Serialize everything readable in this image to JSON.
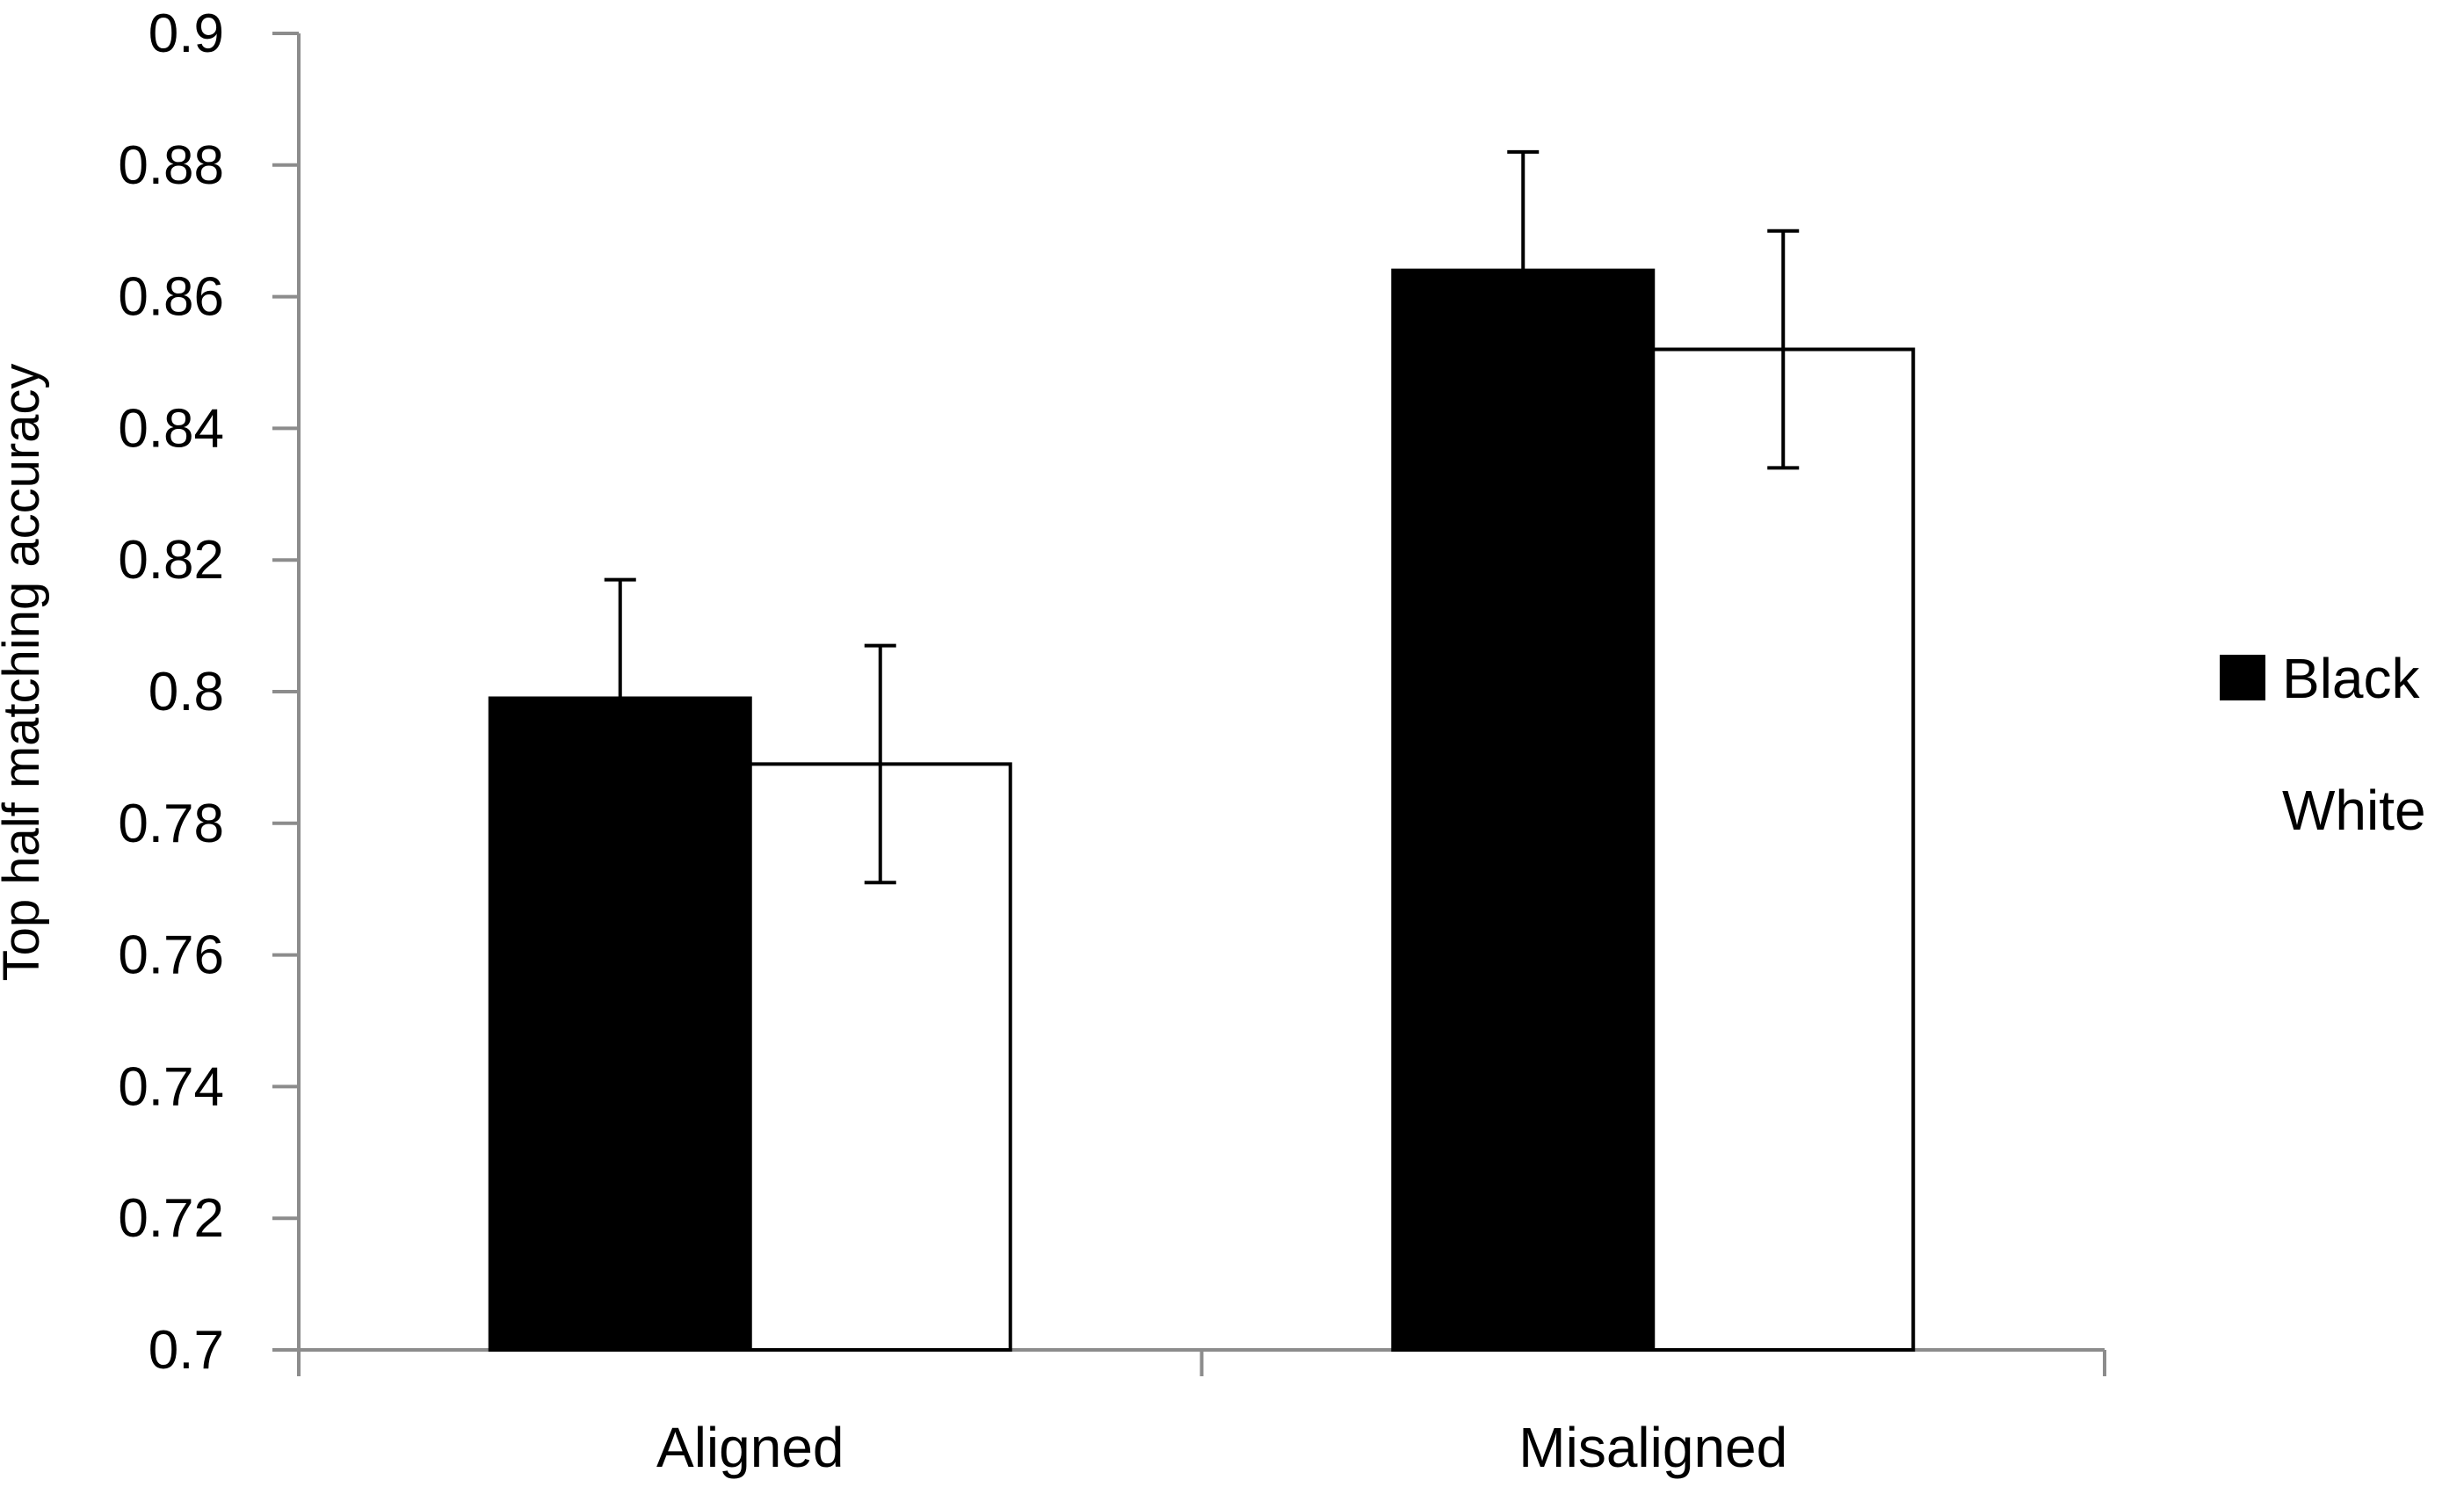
{
  "chart_data": {
    "type": "bar",
    "title": "",
    "xlabel": "",
    "ylabel": "Top half matching accuracy",
    "ylim": [
      0.7,
      0.9
    ],
    "yticks": [
      "0.7",
      "0.72",
      "0.74",
      "0.76",
      "0.78",
      "0.8",
      "0.82",
      "0.84",
      "0.86",
      "0.88",
      "0.9"
    ],
    "categories": [
      "Aligned",
      "Misaligned"
    ],
    "series": [
      {
        "name": "Black",
        "color": "#000000",
        "values": [
          0.799,
          0.864
        ],
        "error": [
          0.018,
          0.018
        ]
      },
      {
        "name": "White",
        "color": "#ffffff",
        "values": [
          0.789,
          0.852
        ],
        "error": [
          0.018,
          0.018
        ]
      }
    ],
    "grid": false,
    "legend_position": "right"
  }
}
